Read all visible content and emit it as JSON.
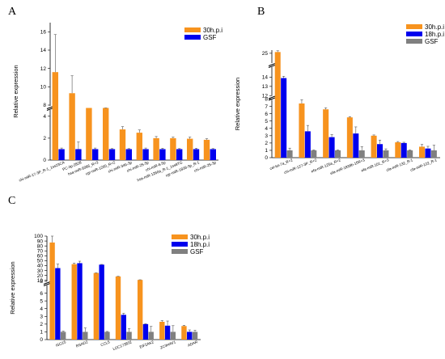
{
  "chart_data": [
    {
      "type": "bar",
      "panel": "A",
      "ylabel": "Relative expression",
      "categories": [
        "chi-miR-17-3P_R-1_1ss23CA",
        "PC-3p-2828",
        "hsa-miR-6086_R+3",
        "cgr-miR-1260_R+2",
        "chi-miR-34b-3p",
        "chi-miR-25-5p",
        "chi-miR-6-5p",
        "hsa-miR-1260a_R-1_1ss8TG",
        "cgr-miR-1839-3p_R-1",
        "chi-miR-25-3p"
      ],
      "series": [
        {
          "name": "30h.p.i",
          "color": "#F7931E",
          "values": [
            11.6,
            9.3,
            7.6,
            7.3,
            2.8,
            2.5,
            2.0,
            2.0,
            1.95,
            1.85
          ],
          "errors": [
            4.1,
            1.9,
            0,
            0.5,
            0.25,
            0.25,
            0.15,
            0.1,
            0.15,
            0.1
          ]
        },
        {
          "name": "GSF",
          "color": "#0000EE",
          "values": [
            1,
            1,
            1,
            1,
            1,
            1,
            1,
            1,
            1,
            1
          ],
          "errors": [
            0.1,
            0.65,
            0.1,
            0.05,
            0.05,
            0.1,
            0.08,
            0.05,
            0.08,
            0.05
          ]
        }
      ],
      "y_ticks": [
        0,
        2,
        4,
        8,
        10,
        12,
        14,
        16
      ],
      "ylim": [
        0,
        17
      ],
      "y_break": [
        4.5,
        8
      ],
      "legend_position": "top-right"
    },
    {
      "type": "bar",
      "panel": "B",
      "ylabel": "Relative expression",
      "categories": [
        "cel-let-7a_R+2",
        "chi-miR-127-3P_R+2",
        "efa-miR-125a_R+2",
        "efa-miR-1839b-1f/R+3",
        "efa-miR-101_R+3",
        "cfa-miR-132_R-1",
        "cfa-miR-122_R-1"
      ],
      "series": [
        {
          "name": "30h.p.i",
          "color": "#F7931E",
          "values": [
            25.2,
            7.4,
            6.6,
            5.5,
            3.0,
            2.1,
            1.5
          ],
          "errors": [
            0.2,
            0.5,
            0.2,
            0.1,
            0.1,
            0.1,
            0.3
          ]
        },
        {
          "name": "18h.p.i",
          "color": "#0000EE",
          "values": [
            13.9,
            3.6,
            2.8,
            3.3,
            1.85,
            2.0,
            1.25
          ],
          "errors": [
            0.2,
            0.8,
            0.35,
            0.9,
            0.55,
            0.1,
            0.3
          ]
        },
        {
          "name": "GSF",
          "color": "#808080",
          "values": [
            1,
            1,
            1,
            1,
            1,
            1,
            1
          ],
          "errors": [
            0.3,
            0.05,
            0.05,
            0.5,
            0.2,
            0.05,
            0.7
          ]
        }
      ],
      "y_ticks": [
        0,
        1,
        2,
        3,
        4,
        5,
        6,
        7,
        8,
        12,
        13,
        14,
        25
      ],
      "ylim": [
        0,
        25.5
      ],
      "y_break": [
        8.5,
        11.5
      ],
      "legend_position": "top-right"
    },
    {
      "type": "bar",
      "panel": "C",
      "ylabel": "Relative expression",
      "categories": [
        "ISG15",
        "RSAD2",
        "CCL5",
        "LOC173832",
        "EIF2AK2",
        "ZC3HAV1",
        "ADAR"
      ],
      "series": [
        {
          "name": "30h.p.i",
          "color": "#F7931E",
          "values": [
            87,
            43,
            25,
            18,
            11,
            2.3,
            1.75
          ],
          "errors": [
            14,
            2,
            0.5,
            0.3,
            0.3,
            0.15,
            0.1
          ]
        },
        {
          "name": "18h.p.i",
          "color": "#0000EE",
          "values": [
            35,
            45,
            42,
            3.2,
            2.0,
            1.8,
            1.0
          ],
          "errors": [
            8,
            4,
            0.5,
            0.2,
            0.05,
            0.6,
            0.25
          ]
        },
        {
          "name": "GSF",
          "color": "#808080",
          "values": [
            1,
            1,
            1,
            1,
            1,
            1,
            1
          ],
          "errors": [
            0.1,
            0.5,
            0.05,
            0.4,
            0.7,
            0.8,
            0.2
          ]
        }
      ],
      "y_ticks": [
        0,
        1,
        2,
        3,
        4,
        5,
        6,
        8,
        10,
        20,
        30,
        40,
        50,
        60,
        70,
        80,
        90,
        100
      ],
      "ylim": [
        0,
        100
      ],
      "y_break": [
        7,
        8
      ],
      "legend_position": "top-right"
    }
  ]
}
